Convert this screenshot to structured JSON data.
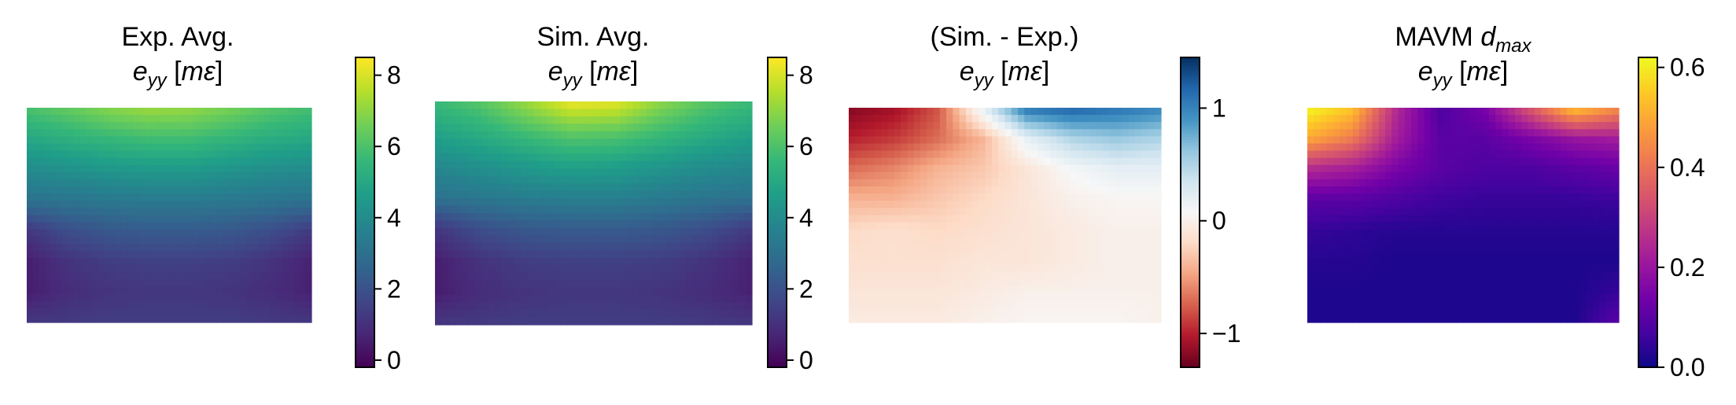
{
  "chart_data": [
    {
      "type": "heatmap",
      "title_line1": "Exp. Avg.",
      "title_var": "e",
      "title_sub": "yy",
      "title_unit": "[mε]",
      "colormap": "viridis",
      "colorbar_range": [
        -0.2,
        8.5
      ],
      "colorbar_ticks": [
        0,
        2,
        4,
        6,
        8
      ],
      "colorbar_tick_labels": [
        "0",
        "2",
        "4",
        "6",
        "8"
      ],
      "field": [
        [
          6.0,
          6.4,
          6.9,
          7.2,
          7.1,
          6.7,
          6.2,
          5.9
        ],
        [
          5.0,
          5.3,
          5.6,
          5.8,
          5.8,
          5.5,
          5.2,
          5.0
        ],
        [
          4.0,
          4.2,
          4.4,
          4.5,
          4.5,
          4.3,
          4.1,
          4.0
        ],
        [
          3.1,
          3.2,
          3.3,
          3.4,
          3.4,
          3.3,
          3.2,
          3.1
        ],
        [
          1.2,
          1.9,
          2.2,
          2.3,
          2.3,
          2.2,
          1.9,
          1.3
        ],
        [
          0.5,
          1.1,
          1.4,
          1.5,
          1.5,
          1.4,
          1.1,
          0.6
        ],
        [
          0.5,
          0.9,
          1.1,
          1.2,
          1.2,
          1.1,
          0.9,
          0.6
        ],
        [
          1.2,
          1.3,
          1.4,
          1.4,
          1.4,
          1.4,
          1.3,
          1.2
        ]
      ]
    },
    {
      "type": "heatmap",
      "title_line1": "Sim. Avg.",
      "title_var": "e",
      "title_sub": "yy",
      "title_unit": "[mε]",
      "colormap": "viridis",
      "colorbar_range": [
        -0.2,
        8.5
      ],
      "colorbar_ticks": [
        0,
        2,
        4,
        6,
        8
      ],
      "colorbar_tick_labels": [
        "0",
        "2",
        "4",
        "6",
        "8"
      ],
      "field": [
        [
          5.7,
          6.2,
          7.2,
          8.3,
          8.2,
          7.0,
          6.2,
          5.7
        ],
        [
          4.8,
          5.2,
          5.8,
          6.3,
          6.2,
          5.7,
          5.2,
          4.8
        ],
        [
          3.9,
          4.2,
          4.5,
          4.8,
          4.7,
          4.4,
          4.1,
          3.9
        ],
        [
          3.1,
          3.3,
          3.5,
          3.6,
          3.6,
          3.4,
          3.2,
          3.1
        ],
        [
          1.2,
          1.9,
          2.2,
          2.3,
          2.3,
          2.2,
          1.9,
          1.3
        ],
        [
          0.5,
          1.1,
          1.4,
          1.5,
          1.5,
          1.4,
          1.1,
          0.6
        ],
        [
          0.5,
          0.9,
          1.1,
          1.2,
          1.2,
          1.1,
          0.9,
          0.6
        ],
        [
          1.2,
          1.3,
          1.4,
          1.4,
          1.4,
          1.4,
          1.3,
          1.2
        ]
      ]
    },
    {
      "type": "heatmap",
      "title_line1": "(Sim. - Exp.)",
      "title_var": "e",
      "title_sub": "yy",
      "title_unit": "[mε]",
      "colormap": "RdBu",
      "colorbar_range": [
        -1.3,
        1.45
      ],
      "colorbar_ticks": [
        -1,
        0,
        1
      ],
      "colorbar_tick_labels": [
        "−1",
        "0",
        "1"
      ],
      "field": [
        [
          -1.2,
          -1.1,
          -0.8,
          0.2,
          1.1,
          1.2,
          1.1,
          1.0
        ],
        [
          -1.0,
          -0.9,
          -0.7,
          -0.4,
          0.2,
          0.5,
          0.6,
          0.5
        ],
        [
          -0.7,
          -0.6,
          -0.4,
          -0.3,
          -0.1,
          0.1,
          0.2,
          0.2
        ],
        [
          -0.4,
          -0.4,
          -0.3,
          -0.2,
          -0.1,
          0.0,
          0.05,
          0.05
        ],
        [
          -0.2,
          -0.15,
          -0.2,
          -0.15,
          -0.1,
          -0.05,
          0.0,
          0.0
        ],
        [
          -0.15,
          -0.15,
          -0.15,
          -0.1,
          -0.1,
          -0.05,
          0.0,
          0.0
        ],
        [
          -0.1,
          -0.1,
          -0.1,
          -0.05,
          0.0,
          0.0,
          0.0,
          0.0
        ],
        [
          -0.05,
          -0.05,
          -0.05,
          0.0,
          0.05,
          0.05,
          0.05,
          0.0
        ]
      ]
    },
    {
      "type": "heatmap",
      "title_line1": "MAVM",
      "title_var": "d",
      "title_sub": "max",
      "title_var2": "e",
      "title_sub2": "yy",
      "title_unit": "[mε]",
      "colormap": "plasma",
      "colorbar_range": [
        0.0,
        0.62
      ],
      "colorbar_ticks": [
        0.0,
        0.2,
        0.4,
        0.6
      ],
      "colorbar_tick_labels": [
        "0.0",
        "0.2",
        "0.4",
        "0.6"
      ],
      "field": [
        [
          0.62,
          0.55,
          0.25,
          0.08,
          0.15,
          0.35,
          0.55,
          0.45
        ],
        [
          0.5,
          0.42,
          0.22,
          0.1,
          0.1,
          0.15,
          0.2,
          0.22
        ],
        [
          0.25,
          0.22,
          0.15,
          0.1,
          0.08,
          0.08,
          0.1,
          0.12
        ],
        [
          0.1,
          0.1,
          0.08,
          0.06,
          0.05,
          0.05,
          0.05,
          0.06
        ],
        [
          0.05,
          0.04,
          0.03,
          0.03,
          0.03,
          0.03,
          0.03,
          0.03
        ],
        [
          0.03,
          0.03,
          0.02,
          0.02,
          0.02,
          0.02,
          0.02,
          0.02
        ],
        [
          0.02,
          0.02,
          0.02,
          0.02,
          0.02,
          0.02,
          0.02,
          0.05
        ],
        [
          0.02,
          0.02,
          0.02,
          0.02,
          0.02,
          0.02,
          0.02,
          0.1
        ]
      ]
    }
  ]
}
